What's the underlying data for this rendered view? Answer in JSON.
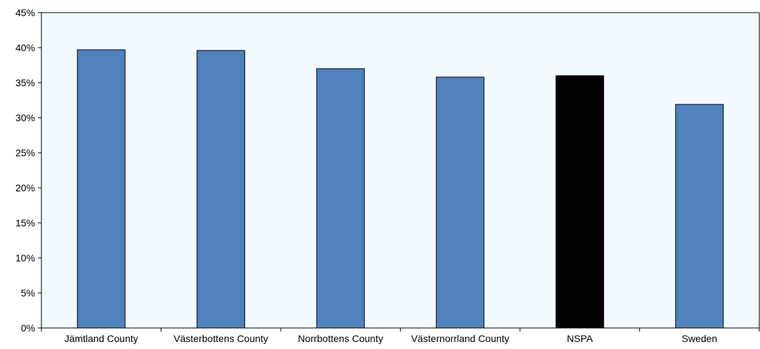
{
  "chart_data": {
    "type": "bar",
    "categories": [
      "Jämtland County",
      "Västerbottens County",
      "Norrbottens County",
      "Västernorrland County",
      "NSPA",
      "Sweden"
    ],
    "values": [
      39.7,
      39.6,
      37.0,
      35.8,
      36.0,
      31.9
    ],
    "bar_colors": [
      "#4f81bd",
      "#4f81bd",
      "#4f81bd",
      "#4f81bd",
      "#000000",
      "#4f81bd"
    ],
    "ylim": [
      0,
      45
    ],
    "yticks": [
      0,
      5,
      10,
      15,
      20,
      25,
      30,
      35,
      40,
      45
    ],
    "ytick_labels": [
      "0%",
      "5%",
      "10%",
      "15%",
      "20%",
      "25%",
      "30%",
      "35%",
      "40%",
      "45%"
    ],
    "plot_background": "#f2fbff",
    "grid": false,
    "legend": "none"
  }
}
